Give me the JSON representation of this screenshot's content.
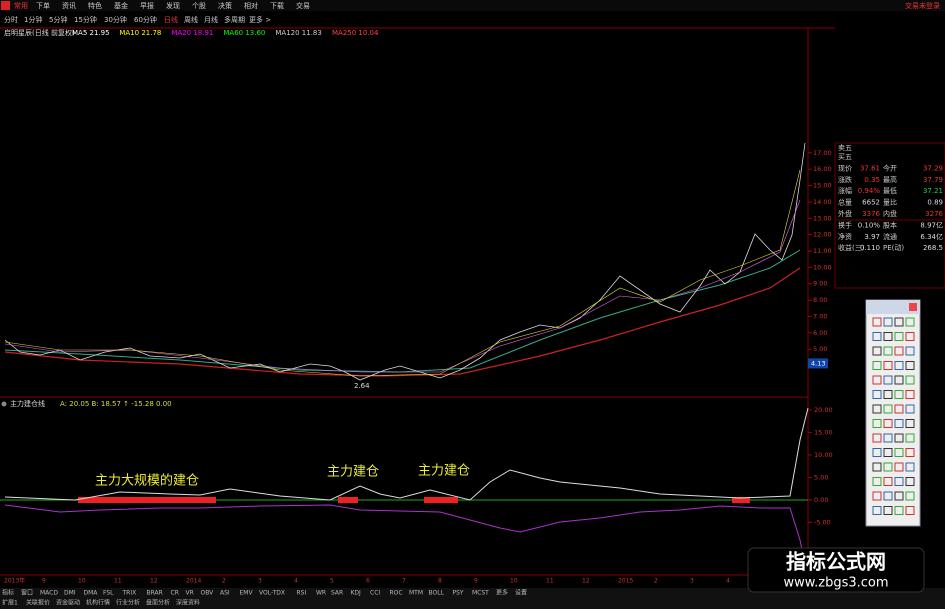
{
  "menu": {
    "items": [
      "常用",
      "下单",
      "资讯",
      "特色",
      "基金",
      "早报",
      "发现",
      "个股",
      "决策",
      "相对",
      "下载",
      "交易"
    ],
    "status": "交易未登录"
  },
  "periods": [
    "分时",
    "1分钟",
    "5分钟",
    "15分钟",
    "30分钟",
    "60分钟",
    "日线",
    "周线",
    "月线",
    "多周期",
    "更多 >"
  ],
  "ma_line": {
    "title": "启明星辰(日线 前复权)",
    "items": [
      {
        "text": "MA5 21.95",
        "color": "#ffffff"
      },
      {
        "text": "MA10 21.78",
        "color": "#ffff00"
      },
      {
        "text": "MA20 18.91",
        "color": "#ff00ff"
      },
      {
        "text": "MA60 13.60",
        "color": "#00ff00"
      },
      {
        "text": "MA120 11.83",
        "color": "#cccccc"
      },
      {
        "text": "MA250 10.04",
        "color": "#ff4444"
      }
    ]
  },
  "quote": {
    "header": "卖五",
    "rows": [
      [
        "买五",
        "",
        "",
        ""
      ],
      [
        "现价",
        "37.61",
        "今开",
        "37.29"
      ],
      [
        "涨跌",
        "0.35",
        "最高",
        "37.79"
      ],
      [
        "涨幅",
        "0.94%",
        "最低",
        "37.21"
      ],
      [
        "总量",
        "6652",
        "量比",
        "0.89"
      ],
      [
        "外盘",
        "3376",
        "内盘",
        "3276"
      ],
      [
        "换手",
        "0.10%",
        "股本",
        "8.97亿"
      ],
      [
        "净资",
        "3.97",
        "流通",
        "6.34亿"
      ],
      [
        "收益(三)",
        "0.110",
        "PE(动)",
        "268.5"
      ]
    ]
  },
  "price_axis": {
    "ylim": [
      2.2,
      17.6
    ],
    "yticks": [
      {
        "value": 17,
        "label": "17.00"
      },
      {
        "value": 16,
        "label": "16.00"
      },
      {
        "value": 15,
        "label": "15.00"
      },
      {
        "value": 14,
        "label": "14.00"
      },
      {
        "value": 13,
        "label": "13.00"
      },
      {
        "value": 12,
        "label": "12.00"
      },
      {
        "value": 11,
        "label": "11.00"
      },
      {
        "value": 10,
        "label": "10.00"
      },
      {
        "value": 9,
        "label": "9.00"
      },
      {
        "value": 8,
        "label": "8.00"
      },
      {
        "value": 7,
        "label": "7.00"
      },
      {
        "value": 6,
        "label": "6.00"
      },
      {
        "value": 5,
        "label": "5.00"
      },
      {
        "value": 4,
        "label": "4.00"
      }
    ],
    "current": {
      "value": 4.13,
      "label": "4.13"
    },
    "low_label": "2.64"
  },
  "indicator": {
    "title": "主力建仓线",
    "values": "A: 20.05  B: 18.57  ↑ -15.28  0.00",
    "ylim": [
      -16.7,
      22.2
    ],
    "yticks": [
      {
        "value": 20,
        "label": "20.00"
      },
      {
        "value": 15,
        "label": "15.00"
      },
      {
        "value": 10,
        "label": "10.00"
      },
      {
        "value": 5,
        "label": "5.00"
      },
      {
        "value": 0,
        "label": "0.00"
      },
      {
        "value": -5,
        "label": "-5.00"
      }
    ]
  },
  "annotations": [
    "主力大规模的建仓",
    "主力建仓",
    "主力建仓"
  ],
  "dates": [
    "2013年",
    "9",
    "10",
    "11",
    "12",
    "2014",
    "2",
    "3",
    "4",
    "5",
    "6",
    "7",
    "8",
    "9",
    "10",
    "11",
    "12",
    "2015",
    "2",
    "3",
    "4",
    "5"
  ],
  "bottom_tabs": [
    "指标",
    "窗口",
    "MACD",
    "DMI",
    "DMA",
    "FSL",
    "TRIX",
    "BRAR",
    "CR",
    "VR",
    "OBV",
    "ASI",
    "EMV",
    "VOL-TDX",
    "RSI",
    "WR",
    "SAR",
    "KDJ",
    "CCI",
    "ROC",
    "MTM",
    "BOLL",
    "PSY",
    "MCST",
    "更多",
    "设置"
  ],
  "bottom_tabs2": [
    "扩展1",
    "关联报价",
    "资金驱动",
    "机构行情",
    "行业分析",
    "盘面分析",
    "深度资料"
  ],
  "watermark": {
    "title": "指标公式网",
    "url": "www.zbgs3.com"
  }
}
